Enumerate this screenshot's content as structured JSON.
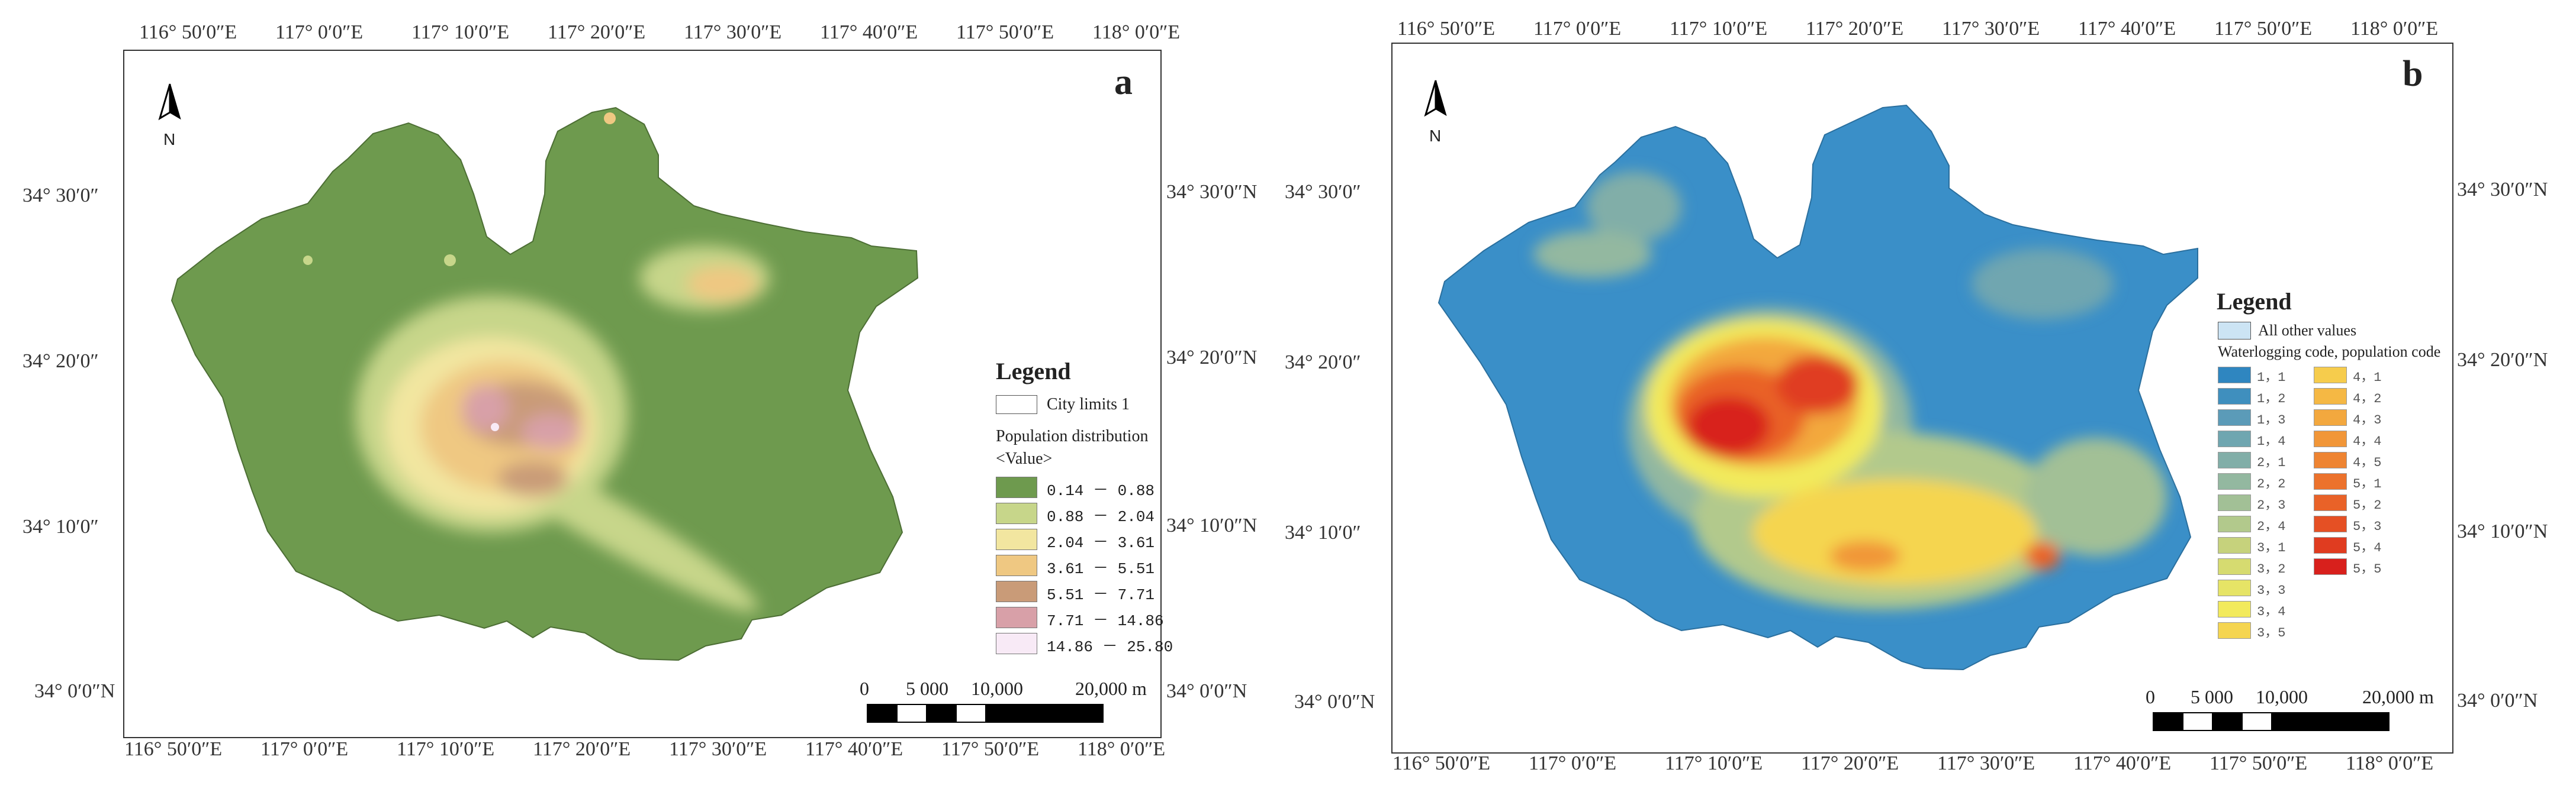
{
  "colors": {
    "background": "#ffffff",
    "frame": "#333333",
    "panel_a_base": "#6e9a4e",
    "panel_b_base": "#3a8fc8"
  },
  "coords": {
    "lon_labels": [
      "116° 50′0″E",
      "117° 0′0″E",
      "117° 10′0″E",
      "117° 20′0″E",
      "117° 30′0″E",
      "117° 40′0″E",
      "117° 50′0″E",
      "118° 0′0″E"
    ],
    "lat_labels_left": [
      "34° 30′0″",
      "34° 20′0″",
      "34° 10′0″",
      "34° 0′0″N"
    ],
    "lat_labels_right": [
      "34° 30′0″N",
      "34° 20′0″N",
      "34° 10′0″N",
      "34° 0′0″N"
    ]
  },
  "panel_a": {
    "letter": "a",
    "north": "N",
    "legend": {
      "title": "Legend",
      "city_limits": "City limits 1",
      "layer_name": "Population distribution",
      "value_label": "<Value>",
      "classes": [
        {
          "label": "0.14  － 0.88",
          "color": "#6e9a4e"
        },
        {
          "label": "0.88  － 2.04",
          "color": "#c7d68a"
        },
        {
          "label": "2.04  － 3.61",
          "color": "#f2e6a0"
        },
        {
          "label": "3.61  － 5.51",
          "color": "#efc882"
        },
        {
          "label": "5.51  － 7.71",
          "color": "#c99b78"
        },
        {
          "label": "7.71  － 14.86",
          "color": "#d8a0a8"
        },
        {
          "label": "14.86 － 25.80",
          "color": "#f8eaf6"
        }
      ]
    },
    "scalebar": {
      "ticks": [
        "0",
        "5 000",
        "10,000",
        "20,000 m"
      ]
    }
  },
  "panel_b": {
    "letter": "b",
    "north": "N",
    "legend": {
      "title": "Legend",
      "other": "All other values",
      "field": "Waterlogging code, population code",
      "col1": [
        {
          "label": "1，1",
          "color": "#2f86c0"
        },
        {
          "label": "1，2",
          "color": "#3f8fbe"
        },
        {
          "label": "1，3",
          "color": "#5b9bb8"
        },
        {
          "label": "1，4",
          "color": "#6fa6b0"
        },
        {
          "label": "2，1",
          "color": "#81aea8"
        },
        {
          "label": "2，2",
          "color": "#93b8a0"
        },
        {
          "label": "2，3",
          "color": "#a2c096"
        },
        {
          "label": "2，4",
          "color": "#b2c98c"
        },
        {
          "label": "3，1",
          "color": "#c6d27c"
        },
        {
          "label": "3，2",
          "color": "#d6db70"
        },
        {
          "label": "3，3",
          "color": "#e6e466"
        },
        {
          "label": "3，4",
          "color": "#f2ea5c"
        },
        {
          "label": "3，5",
          "color": "#f5d550"
        }
      ],
      "col2": [
        {
          "label": "4，1",
          "color": "#f6cc4c"
        },
        {
          "label": "4，2",
          "color": "#f5b844"
        },
        {
          "label": "4，3",
          "color": "#f3a83e"
        },
        {
          "label": "4，4",
          "color": "#f19638"
        },
        {
          "label": "4，5",
          "color": "#ee8432"
        },
        {
          "label": "5，1",
          "color": "#ec722c"
        },
        {
          "label": "5，2",
          "color": "#e96228"
        },
        {
          "label": "5，3",
          "color": "#e55024"
        },
        {
          "label": "5，4",
          "color": "#e03c20"
        },
        {
          "label": "5，5",
          "color": "#d8201c"
        }
      ]
    },
    "scalebar": {
      "ticks": [
        "0",
        "5 000",
        "10,000",
        "20,000 m"
      ]
    }
  }
}
